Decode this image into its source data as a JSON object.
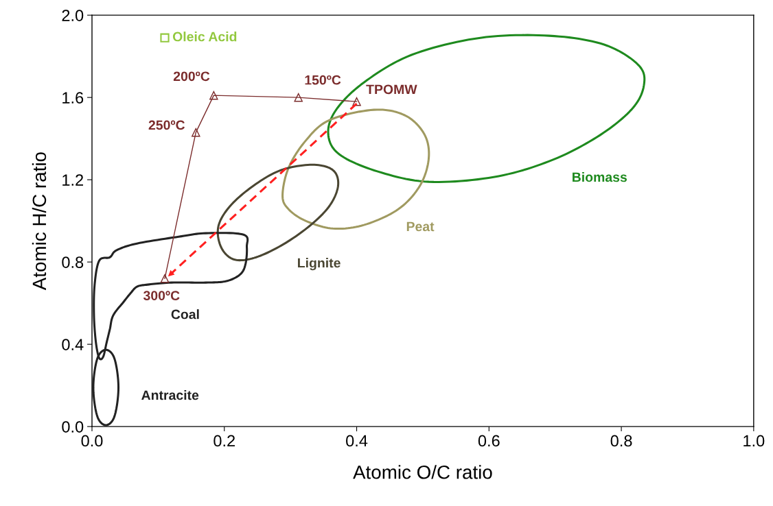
{
  "chart_data": {
    "type": "line",
    "xlabel": "Atomic O/C ratio",
    "ylabel": "Atomic H/C ratio",
    "xlim": [
      0,
      1.0
    ],
    "ylim": [
      0,
      2.0
    ],
    "xticks": [
      {
        "value": 0,
        "label": "0.0"
      },
      0.2,
      0.4,
      0.6,
      0.8,
      {
        "value": 1.0,
        "label": "1.0"
      }
    ],
    "yticks": [
      {
        "value": 0,
        "label": "0.0"
      },
      0.4,
      0.8,
      1.2,
      1.6,
      {
        "value": 2.0,
        "label": "2.0"
      }
    ],
    "grid": false,
    "series": [
      {
        "color": "#7b2c2c",
        "marker": "triangle",
        "x": [
          0.4,
          0.312,
          0.184,
          0.157,
          0.11
        ],
        "values": [
          1.58,
          1.6,
          1.61,
          1.43,
          0.72
        ]
      },
      {
        "color": "#ff2020",
        "line_style": "dashed",
        "x": [
          0.4,
          0.115
        ],
        "values": [
          1.57,
          0.73
        ]
      },
      {
        "type": "scatter",
        "name": "Oleic Acid",
        "color": "#92c83e",
        "marker": "square",
        "x": [
          0.11
        ],
        "values": [
          1.89
        ]
      }
    ],
    "annotations": [
      "Biomass",
      "Peat",
      "Lignite",
      "Coal",
      "Antracite",
      {
        "text": "TPOMW",
        "x": 0.4,
        "y": 1.58
      },
      {
        "text": "150ºC",
        "x": 0.312,
        "y": 1.6
      },
      {
        "text": "200ºC",
        "x": 0.184,
        "y": 1.61
      },
      {
        "text": "250ºC",
        "x": 0.157,
        "y": 1.43
      },
      {
        "text": "300ºC",
        "x": 0.11,
        "y": 0.72
      }
    ]
  }
}
